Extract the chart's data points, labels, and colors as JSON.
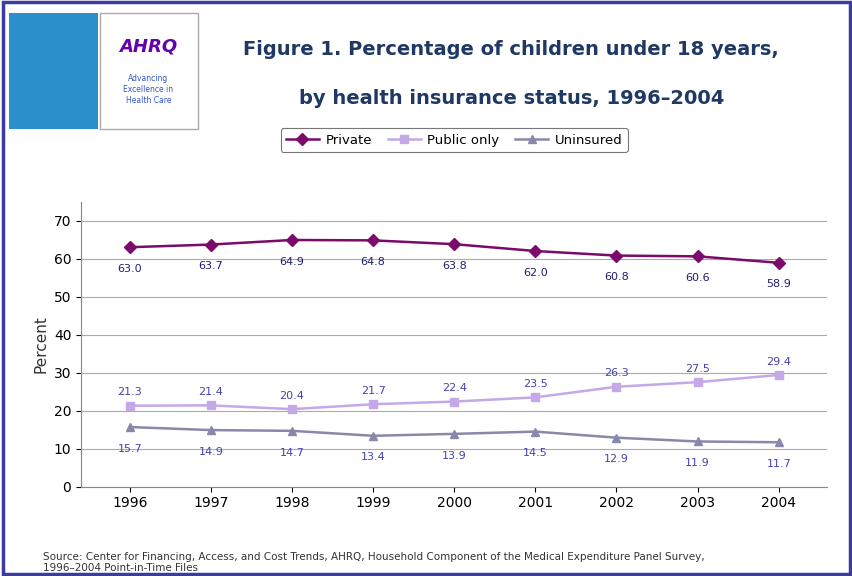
{
  "years": [
    1996,
    1997,
    1998,
    1999,
    2000,
    2001,
    2002,
    2003,
    2004
  ],
  "private": [
    63.0,
    63.7,
    64.9,
    64.8,
    63.8,
    62.0,
    60.8,
    60.6,
    58.9
  ],
  "public_only": [
    21.3,
    21.4,
    20.4,
    21.7,
    22.4,
    23.5,
    26.3,
    27.5,
    29.4
  ],
  "uninsured": [
    15.7,
    14.9,
    14.7,
    13.4,
    13.9,
    14.5,
    12.9,
    11.9,
    11.7
  ],
  "private_color": "#7B0A6B",
  "public_color": "#C4A8E8",
  "uninsured_color": "#8888AA",
  "private_label_color": "#1F1F6E",
  "public_label_color": "#4444AA",
  "uninsured_label_color": "#4444AA",
  "title_line1": "Figure 1. Percentage of children under 18 years,",
  "title_line2": "by health insurance status, 1996–2004",
  "ylabel": "Percent",
  "source_text": "Source: Center for Financing, Access, and Cost Trends, AHRQ, Household Component of the Medical Expenditure Panel Survey,\n1996–2004 Point-in-Time Files",
  "ylim": [
    0,
    75
  ],
  "yticks": [
    0,
    10,
    20,
    30,
    40,
    50,
    60,
    70
  ],
  "title_color": "#1F3864",
  "outer_border_color": "#3B3BA0",
  "separator_color": "#2B3F8C",
  "background_color": "#FFFFFF",
  "grid_color": "#AAAAAA",
  "legend_private_label": "Private",
  "legend_public_label": "Public only",
  "legend_uninsured_label": "Uninsured"
}
